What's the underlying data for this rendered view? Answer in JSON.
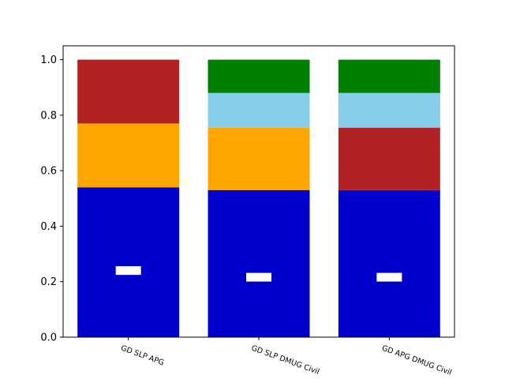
{
  "chart_data": {
    "type": "bar",
    "stacked": true,
    "categories": [
      "GD SLP APG",
      "GD SLP DMUG Civil",
      "GD APG DMUG Civil"
    ],
    "ylim": [
      0,
      1.05
    ],
    "yticks": [
      0.0,
      0.2,
      0.4,
      0.6,
      0.8,
      1.0
    ],
    "ytick_labels": [
      "0.0",
      "0.2",
      "0.4",
      "0.6",
      "0.8",
      "1.0"
    ],
    "grid": false,
    "stacks": [
      [
        {
          "value": 0.54,
          "color": "#0000cd"
        },
        {
          "value": 0.23,
          "color": "#ffa500"
        },
        {
          "value": 0.23,
          "color": "#b22222"
        }
      ],
      [
        {
          "value": 0.53,
          "color": "#0000cd"
        },
        {
          "value": 0.225,
          "color": "#ffa500"
        },
        {
          "value": 0.125,
          "color": "#87ceeb"
        },
        {
          "value": 0.12,
          "color": "#008000"
        }
      ],
      [
        {
          "value": 0.53,
          "color": "#0000cd"
        },
        {
          "value": 0.225,
          "color": "#b22222"
        },
        {
          "value": 0.125,
          "color": "#87ceeb"
        },
        {
          "value": 0.12,
          "color": "#008000"
        }
      ]
    ],
    "markers": [
      {
        "category": "GD SLP APG",
        "y": 0.24,
        "color": "#ffffff"
      },
      {
        "category": "GD SLP DMUG Civil",
        "y": 0.216,
        "color": "#ffffff"
      },
      {
        "category": "GD APG DMUG Civil",
        "y": 0.216,
        "color": "#ffffff"
      }
    ]
  }
}
